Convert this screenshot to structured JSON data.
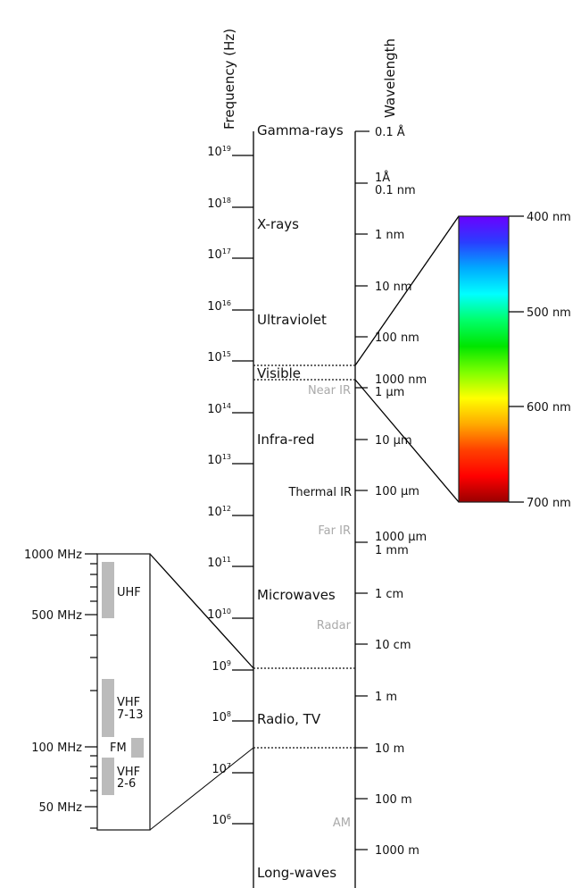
{
  "axes": {
    "frequency_title": "Frequency (Hz)",
    "wavelength_title": "Wavelength"
  },
  "frequency_ticks": [
    {
      "base": "10",
      "exp": "19"
    },
    {
      "base": "10",
      "exp": "18"
    },
    {
      "base": "10",
      "exp": "17"
    },
    {
      "base": "10",
      "exp": "16"
    },
    {
      "base": "10",
      "exp": "15"
    },
    {
      "base": "10",
      "exp": "14"
    },
    {
      "base": "10",
      "exp": "13"
    },
    {
      "base": "10",
      "exp": "12"
    },
    {
      "base": "10",
      "exp": "11"
    },
    {
      "base": "10",
      "exp": "10"
    },
    {
      "base": "10",
      "exp": "9"
    },
    {
      "base": "10",
      "exp": "8"
    },
    {
      "base": "10",
      "exp": "7"
    },
    {
      "base": "10",
      "exp": "6"
    }
  ],
  "bands": {
    "gamma": "Gamma-rays",
    "xrays": "X-rays",
    "uv": "Ultraviolet",
    "visible": "Visible",
    "ir": "Infra-red",
    "microwaves": "Microwaves",
    "radio": "Radio, TV",
    "long": "Long-waves"
  },
  "sub_bands": {
    "near_ir": "Near IR",
    "thermal_ir": "Thermal IR",
    "far_ir": "Far IR",
    "radar": "Radar",
    "am": "AM"
  },
  "wavelength_ticks": {
    "w1": "0.1 Å",
    "w2a": "1Å",
    "w2b": "0.1 nm",
    "w3": "1 nm",
    "w4": "10 nm",
    "w5": "100 nm",
    "w6a": "1000 nm",
    "w6b": "1 μm",
    "w7": "10 μm",
    "w8": "100 μm",
    "w9a": "1000 μm",
    "w9b": "1 mm",
    "w10": "1 cm",
    "w11": "10 cm",
    "w12": "1 m",
    "w13": "10 m",
    "w14": "100 m",
    "w15": "1000 m"
  },
  "visible_spectrum": {
    "labels": [
      "400 nm",
      "500 nm",
      "600 nm",
      "700 nm"
    ],
    "colors": [
      "#6a00ff",
      "#2a3dff",
      "#00aaff",
      "#00ffff",
      "#00ff6a",
      "#00e600",
      "#7dff00",
      "#ffff00",
      "#ffaa00",
      "#ff4000",
      "#ff0000",
      "#990000"
    ]
  },
  "radio_detail": {
    "labels": [
      "1000 MHz",
      "500 MHz",
      "100 MHz",
      "50 MHz"
    ],
    "uhf": "UHF",
    "vhf_hi_a": "VHF",
    "vhf_hi_b": "7-13",
    "fm": "FM",
    "vhf_lo_a": "VHF",
    "vhf_lo_b": "2-6"
  }
}
